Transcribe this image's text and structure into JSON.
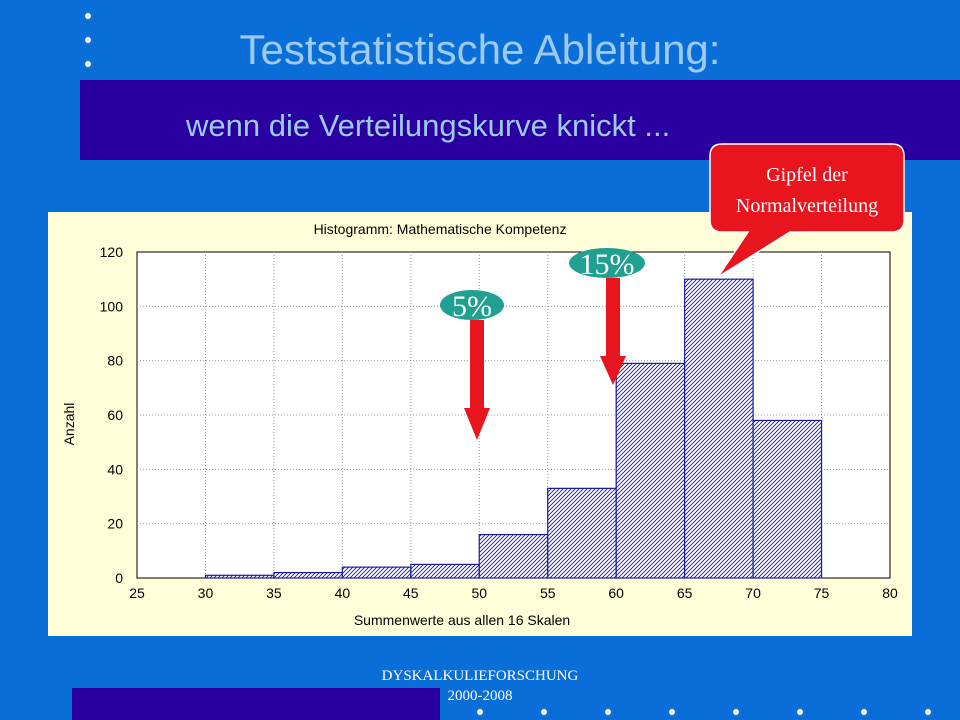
{
  "slide": {
    "title": "Teststatistische Ableitung:",
    "subtitle": "wenn die Verteilungskurve knickt ...",
    "footer_line1": "DYSKALKULIEFORSCHUNG",
    "footer_line2": "2000-2008"
  },
  "annotations": {
    "pct5": "5%",
    "pct15": "15%",
    "peak_line1": "Gipfel der",
    "peak_line2": "Normalverteilung"
  },
  "colors": {
    "background": "#0a6ed8",
    "band": "#2b00a0",
    "panel": "#fffed8",
    "bar_stroke": "#1a1aa0",
    "arrow": "#e8141e",
    "label_bubble": "#20a090",
    "callout": "#e8141e"
  },
  "chart_data": {
    "type": "bar",
    "title": "Histogramm: Mathematische Kompetenz",
    "xlabel": "Summenwerte aus allen 16 Skalen",
    "ylabel": "Anzahl",
    "xlim": [
      25,
      80
    ],
    "ylim": [
      0,
      120
    ],
    "xticks": [
      25,
      30,
      35,
      40,
      45,
      50,
      55,
      60,
      65,
      70,
      75,
      80
    ],
    "yticks": [
      0,
      20,
      40,
      60,
      80,
      100,
      120
    ],
    "grid": true,
    "bins": [
      {
        "start": 25,
        "end": 30,
        "value": 0
      },
      {
        "start": 30,
        "end": 35,
        "value": 1
      },
      {
        "start": 35,
        "end": 40,
        "value": 2
      },
      {
        "start": 40,
        "end": 45,
        "value": 4
      },
      {
        "start": 45,
        "end": 50,
        "value": 5
      },
      {
        "start": 50,
        "end": 55,
        "value": 16
      },
      {
        "start": 55,
        "end": 60,
        "value": 33
      },
      {
        "start": 60,
        "end": 65,
        "value": 79
      },
      {
        "start": 65,
        "end": 70,
        "value": 110
      },
      {
        "start": 70,
        "end": 75,
        "value": 58
      },
      {
        "start": 75,
        "end": 80,
        "value": 0
      }
    ]
  }
}
